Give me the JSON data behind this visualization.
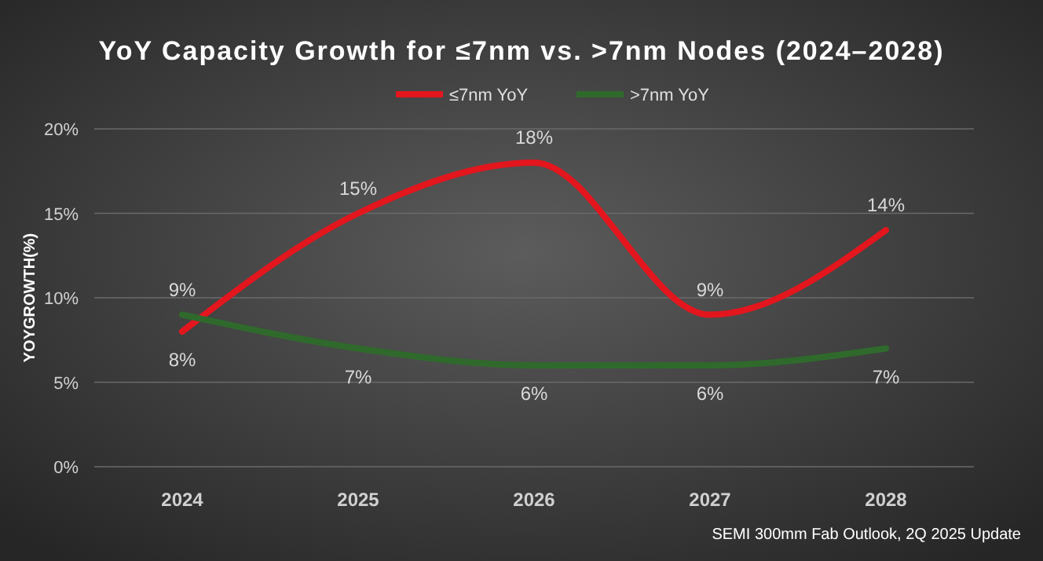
{
  "chart_data": {
    "type": "line",
    "title": "YoY Capacity Growth for ≤7nm vs. >7nm Nodes (2024–2028)",
    "ylabel": "YOYGROWTH(%)",
    "categories": [
      "2024",
      "2025",
      "2026",
      "2027",
      "2028"
    ],
    "series": [
      {
        "name": "≤7nm YoY",
        "color": "#e3161e",
        "values": [
          8,
          15,
          18,
          9,
          14
        ],
        "value_labels": [
          "8%",
          "15%",
          "18%",
          "9%",
          "14%"
        ]
      },
      {
        "name": ">7nm YoY",
        "color": "#2f6a2c",
        "values": [
          9,
          7,
          6,
          6,
          7
        ],
        "value_labels": [
          "9%",
          "7%",
          "6%",
          "6%",
          "7%"
        ]
      }
    ],
    "ylim": [
      0,
      20
    ],
    "yticks": [
      {
        "value": 0,
        "label": "0%"
      },
      {
        "value": 5,
        "label": "5%"
      },
      {
        "value": 10,
        "label": "10%"
      },
      {
        "value": 15,
        "label": "15%"
      },
      {
        "value": 20,
        "label": "20%"
      }
    ],
    "grid": "y",
    "legend": "top",
    "line_style": "solid",
    "annotations": [
      "SEMI 300mm Fab Outlook, 2Q 2025 Update"
    ]
  }
}
